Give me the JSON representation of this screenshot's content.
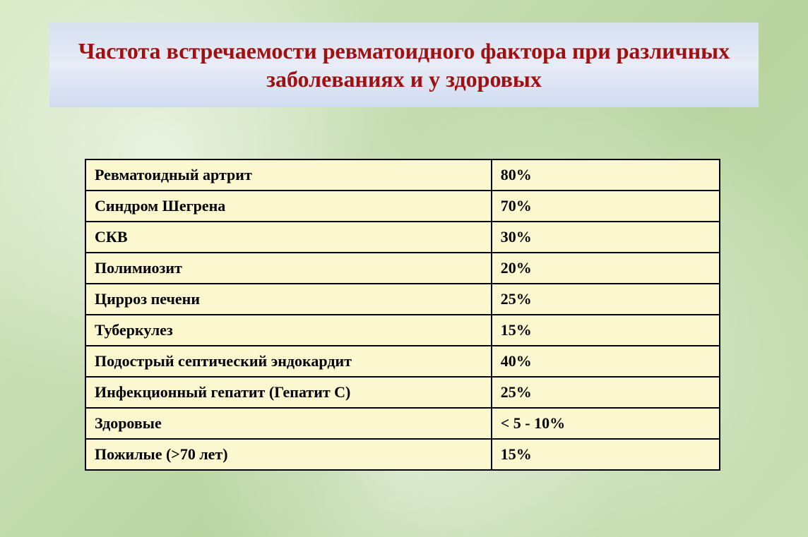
{
  "title": {
    "text": "Частота встречаемости ревматоидного фактора при различных заболеваниях и у здоровых",
    "color": "#a01010",
    "fontsize": 32
  },
  "table": {
    "background_color": "#fbf8d0",
    "border_color": "#000000",
    "text_color": "#000000",
    "fontsize": 22,
    "col_widths_pct": [
      64,
      36
    ],
    "rows": [
      {
        "label": "Ревматоидный артрит",
        "value": "80%"
      },
      {
        "label": "Синдром Шегрена",
        "value": "70%"
      },
      {
        "label": "СКВ",
        "value": "30%"
      },
      {
        "label": "Полимиозит",
        "value": "20%"
      },
      {
        "label": "Цирроз печени",
        "value": "25%"
      },
      {
        "label": "Туберкулез",
        "value": "15%"
      },
      {
        "label": "Подострый септический эндокардит",
        "value": "40%"
      },
      {
        "label": "Инфекционный гепатит (Гепатит С)",
        "value": "25%"
      },
      {
        "label": "Здоровые",
        "value": "< 5 - 10%"
      },
      {
        "label": "Пожилые (>70 лет)",
        "value": "15%"
      }
    ]
  },
  "slide": {
    "title_bar_bg": "linear-gradient(180deg, #d5e0f0 0%, #e8ecf6 50%, #d0dcf0 100%)"
  }
}
